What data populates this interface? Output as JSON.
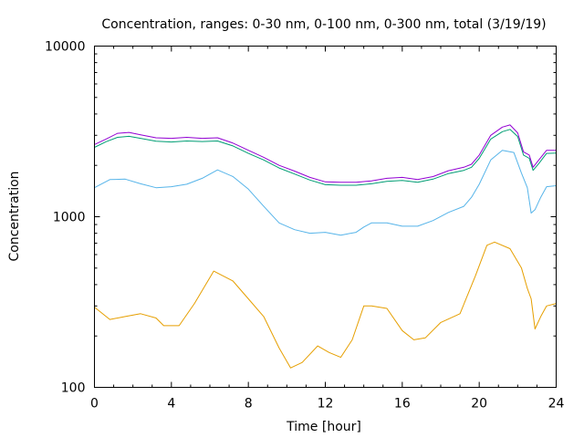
{
  "chart_data": {
    "type": "line",
    "title": "Concentration, ranges: 0-30 nm, 0-100 nm, 0-300 nm, total (3/19/19)",
    "xlabel": "Time [hour]",
    "ylabel": "Concentration",
    "xlim": [
      0,
      24
    ],
    "ylim": [
      100,
      10000
    ],
    "yscale": "log",
    "grid": false,
    "legend": "none",
    "xticks": [
      0,
      4,
      8,
      12,
      16,
      20,
      24
    ],
    "xtick_labels": [
      "0",
      "4",
      "8",
      "12",
      "16",
      "20",
      "24"
    ],
    "yticks": [
      100,
      1000,
      10000
    ],
    "ytick_labels": [
      "100",
      "1000",
      "10000"
    ],
    "series": [
      {
        "color": "#e69f00",
        "x": [
          0,
          0.8,
          1.6,
          2.4,
          3.2,
          3.6,
          4.4,
          5.2,
          6.2,
          7.2,
          8.0,
          8.8,
          9.6,
          10.2,
          10.8,
          11.6,
          12.2,
          12.8,
          13.4,
          14.0,
          14.4,
          15.2,
          16.0,
          16.6,
          17.2,
          18.0,
          19.0,
          19.8,
          20.4,
          20.8,
          21.6,
          22.2,
          22.5,
          22.7,
          22.9,
          23.2,
          23.5,
          24.0
        ],
        "y": [
          295,
          250,
          260,
          270,
          255,
          230,
          230,
          310,
          480,
          420,
          330,
          260,
          170,
          130,
          140,
          175,
          160,
          150,
          190,
          300,
          300,
          290,
          215,
          190,
          195,
          240,
          270,
          450,
          680,
          710,
          650,
          500,
          380,
          330,
          220,
          260,
          300,
          310
        ]
      },
      {
        "color": "#56b4e9",
        "x": [
          0,
          0.8,
          1.6,
          2.4,
          3.2,
          4.0,
          4.8,
          5.6,
          6.4,
          7.2,
          8.0,
          8.8,
          9.6,
          10.4,
          11.2,
          12.0,
          12.8,
          13.6,
          14.0,
          14.4,
          15.2,
          16.0,
          16.8,
          17.6,
          18.4,
          19.2,
          19.6,
          20.0,
          20.6,
          21.2,
          21.8,
          22.2,
          22.5,
          22.7,
          22.9,
          23.2,
          23.5,
          24.0
        ],
        "y": [
          1480,
          1650,
          1660,
          1560,
          1480,
          1500,
          1550,
          1680,
          1880,
          1720,
          1450,
          1150,
          920,
          840,
          800,
          810,
          780,
          810,
          870,
          920,
          920,
          880,
          880,
          950,
          1060,
          1150,
          1300,
          1550,
          2150,
          2450,
          2380,
          1800,
          1480,
          1050,
          1100,
          1300,
          1500,
          1520
        ]
      },
      {
        "color": "#009e73",
        "x": [
          0,
          0.6,
          1.2,
          1.8,
          2.4,
          3.2,
          4.0,
          4.8,
          5.6,
          6.4,
          7.2,
          8.0,
          8.8,
          9.6,
          10.4,
          11.2,
          12.0,
          12.8,
          13.6,
          14.4,
          15.2,
          16.0,
          16.8,
          17.6,
          18.4,
          19.2,
          19.6,
          20.0,
          20.6,
          21.2,
          21.6,
          22.0,
          22.3,
          22.6,
          22.8,
          23.1,
          23.5,
          24.0
        ],
        "y": [
          2550,
          2750,
          2920,
          2960,
          2880,
          2770,
          2740,
          2780,
          2760,
          2780,
          2600,
          2350,
          2150,
          1930,
          1780,
          1640,
          1540,
          1530,
          1530,
          1560,
          1610,
          1630,
          1590,
          1660,
          1790,
          1870,
          1950,
          2200,
          2850,
          3150,
          3250,
          2950,
          2300,
          2200,
          1870,
          2050,
          2350,
          2360
        ]
      },
      {
        "color": "#9400d3",
        "x": [
          0,
          0.6,
          1.2,
          1.8,
          2.4,
          3.2,
          4.0,
          4.8,
          5.6,
          6.4,
          7.2,
          8.0,
          8.8,
          9.6,
          10.4,
          11.2,
          12.0,
          12.8,
          13.6,
          14.4,
          15.2,
          16.0,
          16.8,
          17.6,
          18.4,
          19.2,
          19.6,
          20.0,
          20.6,
          21.2,
          21.6,
          22.0,
          22.3,
          22.6,
          22.8,
          23.1,
          23.5,
          24.0
        ],
        "y": [
          2650,
          2850,
          3080,
          3120,
          3020,
          2900,
          2880,
          2920,
          2880,
          2900,
          2700,
          2450,
          2230,
          2000,
          1850,
          1700,
          1600,
          1590,
          1590,
          1620,
          1680,
          1700,
          1650,
          1720,
          1860,
          1950,
          2030,
          2300,
          3000,
          3350,
          3450,
          3100,
          2400,
          2300,
          1950,
          2150,
          2450,
          2450
        ]
      }
    ]
  }
}
